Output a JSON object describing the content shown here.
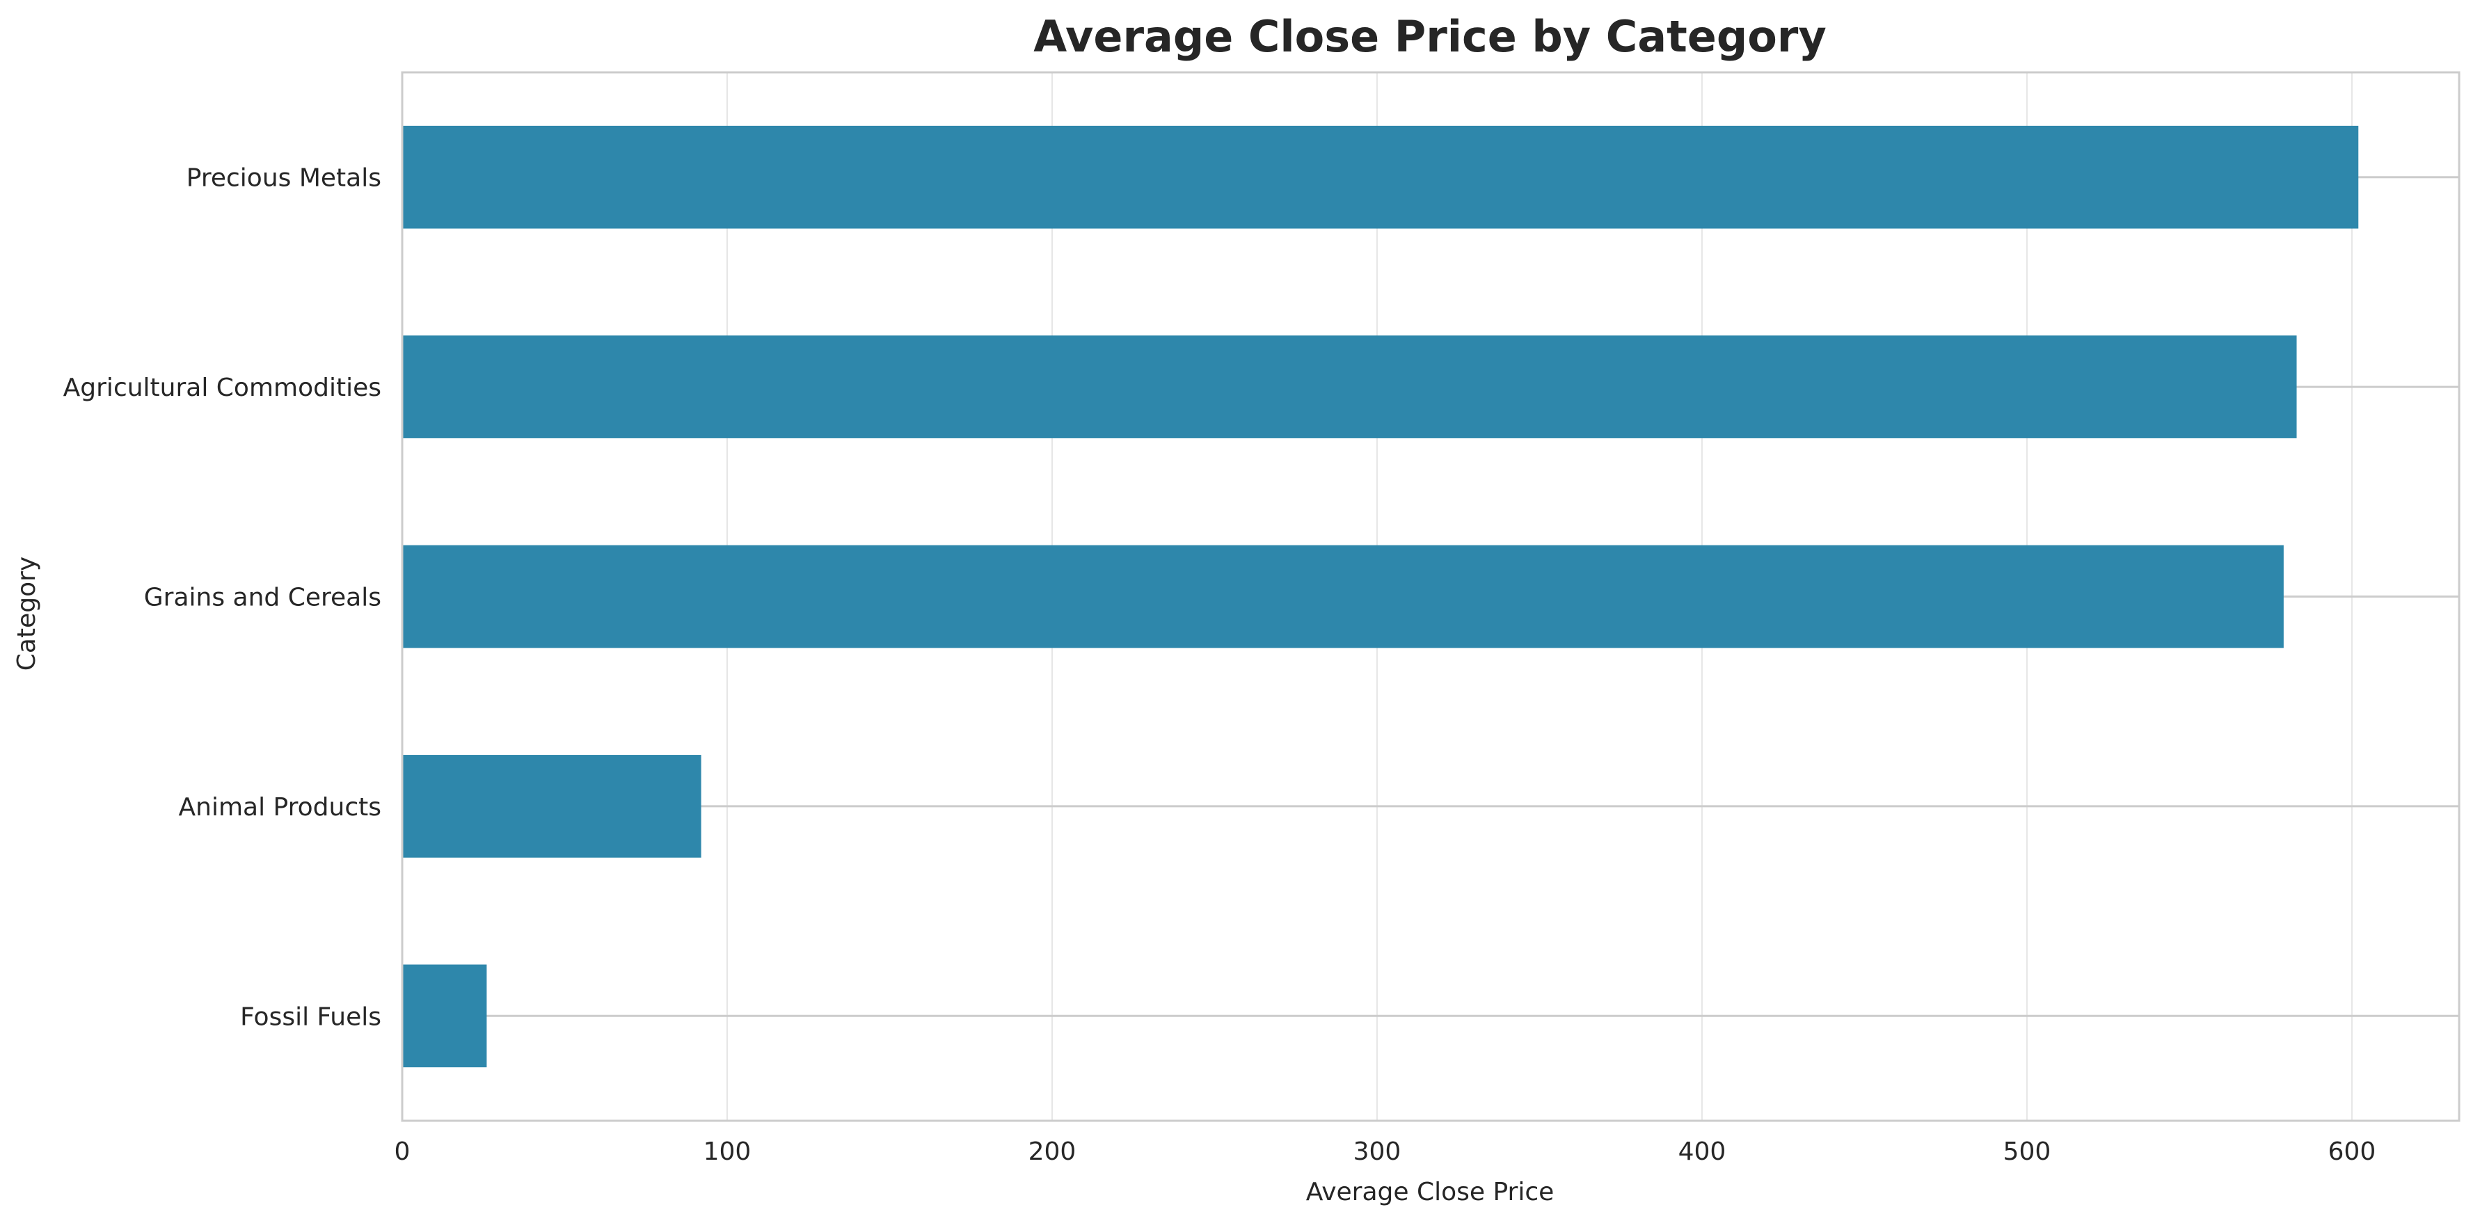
{
  "chart_data": {
    "type": "bar",
    "orientation": "horizontal",
    "title": "Average Close Price by Category",
    "xlabel": "Average Close Price",
    "ylabel": "Category",
    "categories": [
      "Precious Metals",
      "Agricultural Commodities",
      "Grains and Cereals",
      "Animal Products",
      "Fossil Fuels"
    ],
    "values": [
      602,
      583,
      579,
      92,
      26
    ],
    "xlim": [
      0,
      633
    ],
    "xticks": [
      0,
      100,
      200,
      300,
      400,
      500,
      600
    ],
    "grid": true,
    "bar_color": "#2e87ab",
    "grid_color": "#e6e6e6",
    "spine_color": "#cccccc",
    "category_line_color": "#cccccc"
  }
}
